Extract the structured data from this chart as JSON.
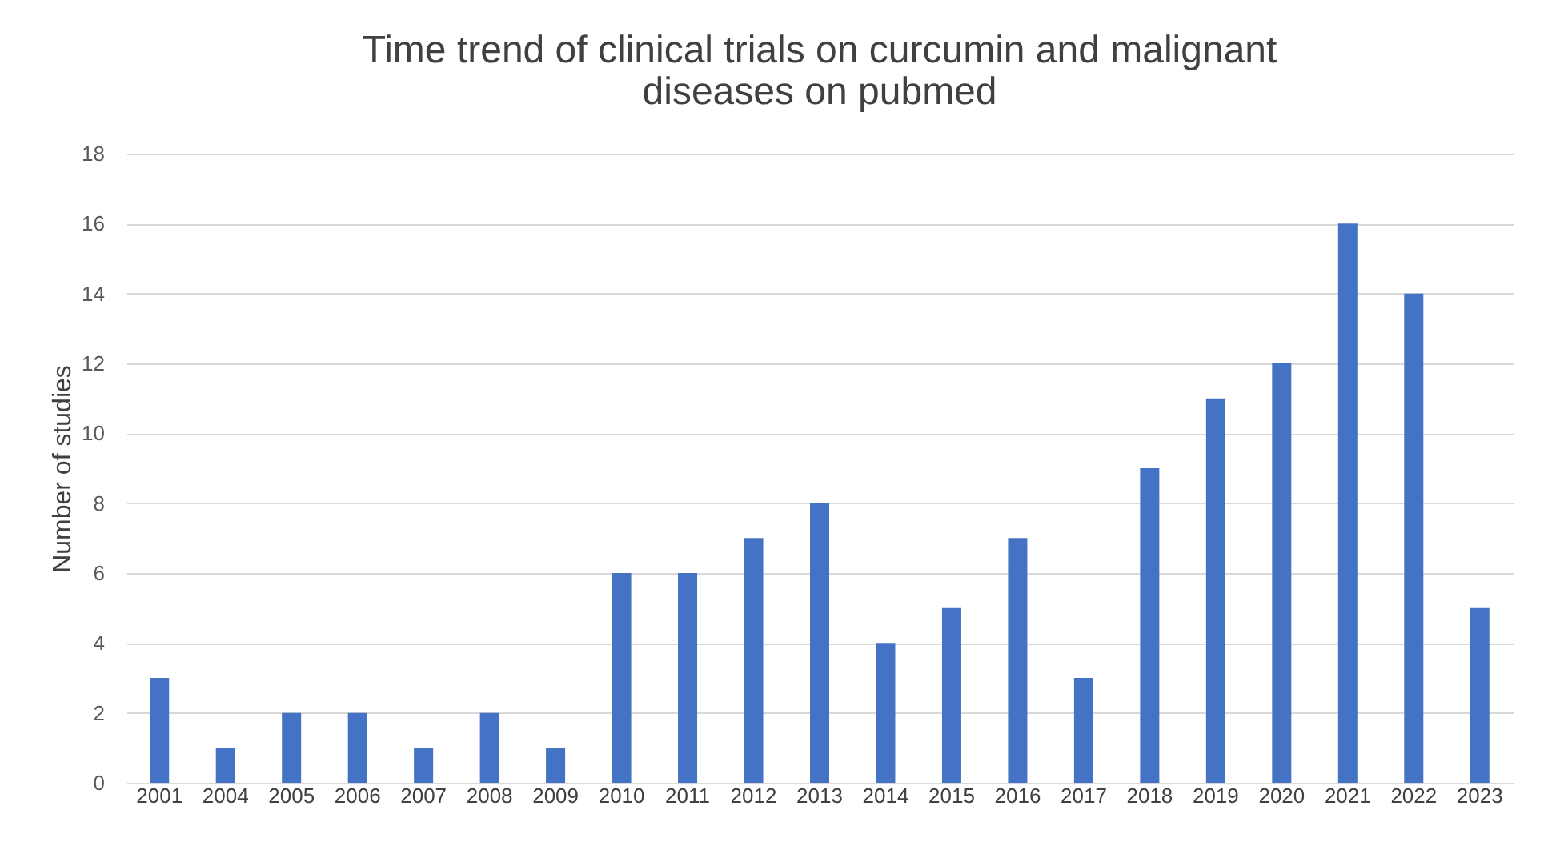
{
  "chart_data": {
    "type": "bar",
    "title": "Time trend of clinical trials on curcumin and malignant\ndiseases on pubmed",
    "ylabel": "Number of studies",
    "categories": [
      "2001",
      "2004",
      "2005",
      "2006",
      "2007",
      "2008",
      "2009",
      "2010",
      "2011",
      "2012",
      "2013",
      "2014",
      "2015",
      "2016",
      "2017",
      "2018",
      "2019",
      "2020",
      "2021",
      "2022",
      "2023"
    ],
    "values": [
      3,
      1,
      2,
      2,
      1,
      2,
      1,
      6,
      6,
      7,
      8,
      4,
      5,
      7,
      3,
      9,
      11,
      12,
      16,
      14,
      5
    ],
    "color": "#4472c4",
    "ylim": [
      0,
      18
    ],
    "yticks": [
      0,
      2,
      4,
      6,
      8,
      10,
      12,
      14,
      16,
      18
    ],
    "grid": "y"
  }
}
